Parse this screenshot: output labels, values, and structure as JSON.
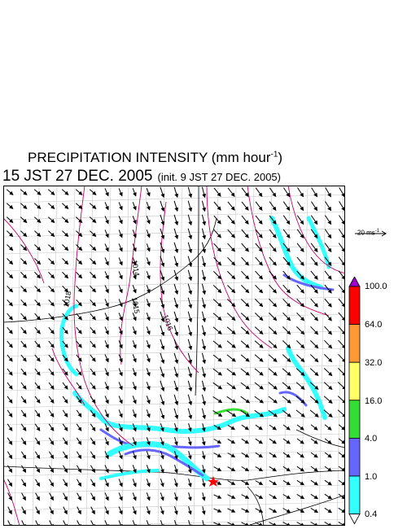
{
  "title": {
    "line1_text": "PRECIPITATION INTENSITY (mm hour",
    "line1_sup": "-1",
    "line1_close": ")",
    "line2_main": "15 JST 27 DEC. 2005",
    "line2_init": "(init. 9 JST 27 DEC. 2005)"
  },
  "reference_vector": {
    "value": "20",
    "unit": "ms",
    "unit_sup": "-1"
  },
  "colorbar": {
    "labels": [
      "100.0",
      "64.0",
      "32.0",
      "16.0",
      "4.0",
      "1.0",
      "0.4"
    ],
    "colors": [
      "#9900cc",
      "#ff0000",
      "#ff9933",
      "#ffff66",
      "#33dd33",
      "#6666ff",
      "#33ffff",
      "#ffffff"
    ]
  },
  "map": {
    "isobar_labels": [
      "1014",
      "1015",
      "1016",
      "1018"
    ],
    "isobar_color": "#cc0066",
    "wind_arrow_color": "#000000",
    "marker_color": "#ff0000"
  }
}
